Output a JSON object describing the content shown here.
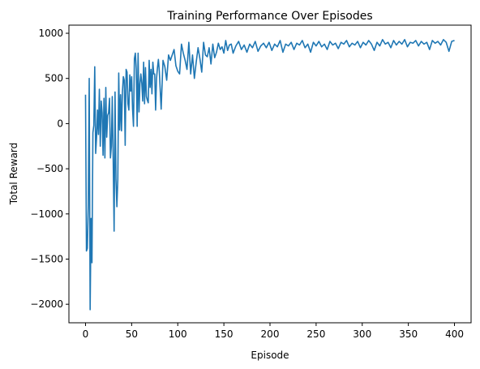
{
  "chart_data": {
    "type": "line",
    "title": "Training Performance Over Episodes",
    "xlabel": "Episode",
    "ylabel": "Total Reward",
    "xlim": [
      -18,
      418
    ],
    "ylim": [
      -2205,
      1090
    ],
    "xticks": [
      0,
      50,
      100,
      150,
      200,
      250,
      300,
      350,
      400
    ],
    "yticks": [
      -2000,
      -1500,
      -1000,
      -500,
      0,
      500,
      1000
    ],
    "grid": false,
    "legend": "none",
    "series": [
      {
        "color": "#1f77b4",
        "x": [
          0,
          1,
          2,
          3,
          4,
          5,
          6,
          7,
          8,
          9,
          10,
          11,
          12,
          13,
          14,
          15,
          16,
          17,
          18,
          19,
          20,
          21,
          22,
          23,
          24,
          25,
          26,
          27,
          28,
          29,
          30,
          31,
          32,
          33,
          34,
          35,
          36,
          37,
          38,
          39,
          40,
          41,
          42,
          43,
          44,
          45,
          46,
          47,
          48,
          49,
          50,
          51,
          52,
          53,
          54,
          55,
          56,
          57,
          58,
          59,
          60,
          61,
          62,
          63,
          64,
          65,
          66,
          67,
          68,
          69,
          70,
          71,
          72,
          73,
          74,
          75,
          76,
          77,
          78,
          79,
          80,
          82,
          84,
          86,
          88,
          90,
          92,
          94,
          96,
          98,
          100,
          102,
          104,
          106,
          108,
          110,
          112,
          114,
          116,
          118,
          120,
          122,
          124,
          126,
          128,
          130,
          132,
          134,
          136,
          138,
          140,
          142,
          144,
          146,
          148,
          150,
          152,
          154,
          156,
          158,
          160,
          163,
          166,
          169,
          172,
          175,
          178,
          181,
          184,
          187,
          190,
          193,
          196,
          199,
          202,
          205,
          208,
          211,
          214,
          217,
          220,
          223,
          226,
          229,
          232,
          235,
          238,
          241,
          244,
          247,
          250,
          253,
          256,
          259,
          262,
          265,
          268,
          271,
          274,
          277,
          280,
          283,
          286,
          289,
          292,
          295,
          298,
          301,
          304,
          307,
          310,
          313,
          316,
          319,
          322,
          325,
          328,
          331,
          334,
          337,
          340,
          343,
          346,
          349,
          352,
          355,
          358,
          361,
          364,
          367,
          370,
          373,
          376,
          379,
          382,
          385,
          388,
          391,
          394,
          397,
          400
        ],
        "values": [
          320,
          -1410,
          -1380,
          -900,
          500,
          -2060,
          -1050,
          -1540,
          -100,
          -20,
          630,
          -330,
          -150,
          150,
          -120,
          380,
          -250,
          250,
          120,
          -350,
          280,
          -380,
          400,
          -150,
          90,
          120,
          280,
          -380,
          -250,
          300,
          -400,
          -1190,
          350,
          -620,
          -920,
          -620,
          560,
          -70,
          320,
          -80,
          350,
          520,
          480,
          -240,
          600,
          570,
          220,
          150,
          540,
          360,
          520,
          160,
          -30,
          720,
          780,
          600,
          -30,
          780,
          130,
          440,
          550,
          450,
          250,
          680,
          220,
          620,
          300,
          260,
          230,
          700,
          400,
          600,
          330,
          680,
          550,
          550,
          150,
          500,
          620,
          710,
          580,
          160,
          700,
          630,
          480,
          760,
          700,
          760,
          820,
          640,
          580,
          550,
          880,
          780,
          700,
          600,
          900,
          550,
          760,
          500,
          680,
          840,
          720,
          570,
          900,
          760,
          740,
          840,
          660,
          880,
          730,
          790,
          890,
          820,
          850,
          780,
          920,
          810,
          870,
          880,
          780,
          860,
          910,
          820,
          870,
          790,
          880,
          840,
          910,
          800,
          860,
          890,
          840,
          900,
          810,
          880,
          850,
          920,
          790,
          880,
          860,
          900,
          820,
          890,
          870,
          920,
          840,
          880,
          790,
          900,
          860,
          910,
          850,
          880,
          820,
          910,
          870,
          890,
          830,
          900,
          880,
          920,
          850,
          890,
          870,
          910,
          840,
          900,
          870,
          920,
          880,
          810,
          900,
          860,
          930,
          880,
          900,
          840,
          920,
          870,
          910,
          880,
          930,
          850,
          900,
          890,
          920,
          860,
          910,
          880,
          900,
          820,
          920,
          890,
          910,
          870,
          930,
          900,
          800,
          910,
          920
        ]
      }
    ]
  }
}
